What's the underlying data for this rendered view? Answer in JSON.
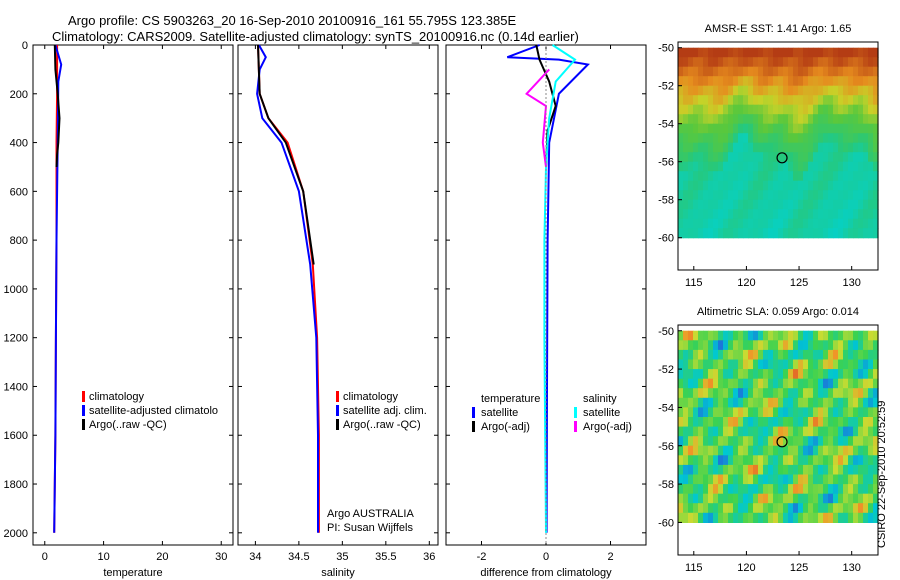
{
  "header": {
    "line1": "Argo profile: CS 5903263_20 16-Sep-2010 20100916_161 55.795S 123.385E",
    "line2": "Climatology: CARS2009. Satellite-adjusted climatology: synTS_20100916.nc (0.14d earlier)"
  },
  "side_label": "CSIRO 22-Sep-2010 20:52:59",
  "colors": {
    "climatology": "#ff0000",
    "satellite": "#0000ff",
    "argo": "#000000",
    "cyan": "#00ffff",
    "magenta": "#ff00ff"
  },
  "chart_data": [
    {
      "id": "temperature",
      "type": "line",
      "xlabel": "temperature",
      "ylabel": "",
      "xlim": [
        -2,
        32
      ],
      "ylim": [
        2050,
        0
      ],
      "xticks": [
        0,
        10,
        20,
        30
      ],
      "yticks": [
        0,
        200,
        400,
        600,
        800,
        1000,
        1200,
        1400,
        1600,
        1800,
        2000
      ],
      "legend": {
        "position": "lower-center",
        "entries": [
          "climatology",
          "satellite-adjusted climatolo",
          "Argo(..raw -QC)"
        ]
      },
      "series": [
        {
          "name": "climatology",
          "color": "#ff0000",
          "x": [
            2.1,
            2.1,
            2.0,
            2.0,
            1.9,
            1.8,
            1.7,
            1.6
          ],
          "y": [
            0,
            200,
            400,
            800,
            1200,
            1600,
            1800,
            2000
          ]
        },
        {
          "name": "satellite-adjusted climatology",
          "color": "#0000ff",
          "x": [
            1.8,
            2.8,
            2.3,
            2.2,
            2.0,
            1.9,
            1.8,
            1.7,
            1.6
          ],
          "y": [
            0,
            80,
            150,
            400,
            800,
            1200,
            1600,
            1800,
            2000
          ]
        },
        {
          "name": "Argo(..raw -QC)",
          "color": "#000000",
          "x": [
            1.7,
            1.8,
            2.2,
            2.5,
            2.3,
            2.1,
            2.0
          ],
          "y": [
            0,
            100,
            200,
            300,
            400,
            450,
            500
          ]
        }
      ]
    },
    {
      "id": "salinity",
      "type": "line",
      "xlabel": "salinity",
      "xlim": [
        33.8,
        36.1
      ],
      "ylim": [
        2050,
        0
      ],
      "xticks": [
        34,
        34.5,
        35,
        35.5,
        36
      ],
      "yticks": [
        0,
        200,
        400,
        600,
        800,
        1000,
        1200,
        1400,
        1600,
        1800,
        2000
      ],
      "legend": {
        "position": "lower-center",
        "entries": [
          "climatology",
          "satellite adj. clim.",
          "Argo(..raw -QC)"
        ]
      },
      "annotation": [
        "Argo AUSTRALIA",
        "PI: Susan Wijffels"
      ],
      "series": [
        {
          "name": "climatology",
          "color": "#ff0000",
          "x": [
            34.03,
            34.05,
            34.15,
            34.37,
            34.55,
            34.66,
            34.71,
            34.73,
            34.73
          ],
          "y": [
            0,
            200,
            300,
            400,
            600,
            900,
            1200,
            1600,
            2000
          ]
        },
        {
          "name": "satellite adj. clim.",
          "color": "#0000ff",
          "x": [
            34.04,
            34.12,
            34.05,
            34.02,
            34.08,
            34.3,
            34.5,
            34.63,
            34.7,
            34.72,
            34.72
          ],
          "y": [
            0,
            50,
            100,
            200,
            300,
            400,
            600,
            900,
            1200,
            1600,
            2000
          ]
        },
        {
          "name": "Argo(..raw -QC)",
          "color": "#000000",
          "x": [
            34.03,
            34.05,
            34.15,
            34.35,
            34.55,
            34.67
          ],
          "y": [
            0,
            200,
            300,
            400,
            600,
            900
          ]
        }
      ]
    },
    {
      "id": "difference",
      "type": "line",
      "xlabel": "difference from climatology",
      "xlim": [
        -3.1,
        3.1
      ],
      "ylim": [
        2050,
        0
      ],
      "xticks": [
        -2,
        0,
        2
      ],
      "yticks": [
        0,
        200,
        400,
        600,
        800,
        1000,
        1200,
        1400,
        1600,
        1800,
        2000
      ],
      "legend": {
        "position": "lower-center",
        "entries": [
          "temperature",
          "satellite",
          "Argo(-adj)",
          "salinity",
          "satellite",
          "Argo(-adj)"
        ]
      },
      "series": [
        {
          "name": "temperature satellite",
          "color": "#0000ff",
          "x": [
            -0.2,
            -1.2,
            0.4,
            1.3,
            0.4,
            0.1,
            0.05,
            0.03,
            0.02
          ],
          "y": [
            0,
            50,
            60,
            80,
            200,
            400,
            800,
            1400,
            2000
          ]
        },
        {
          "name": "temperature Argo(-adj)",
          "color": "#000000",
          "x": [
            -0.3,
            -0.2,
            0.1,
            0.3,
            0.05,
            0.0
          ],
          "y": [
            0,
            60,
            150,
            250,
            350,
            500
          ]
        },
        {
          "name": "salinity satellite",
          "color": "#00ffff",
          "x": [
            0.2,
            0.9,
            0.3,
            0.1,
            0.0,
            -0.05,
            -0.05,
            0.0
          ],
          "y": [
            0,
            60,
            150,
            300,
            500,
            800,
            1200,
            2000
          ]
        },
        {
          "name": "salinity Argo(-adj)",
          "color": "#ff00ff",
          "x": [
            0.1,
            -0.6,
            0.0,
            -0.1,
            0.0
          ],
          "y": [
            100,
            200,
            250,
            400,
            500
          ]
        }
      ]
    },
    {
      "id": "amsr-sst",
      "type": "heatmap",
      "title": "AMSR-E SST: 1.41 Argo: 1.65",
      "xlim": [
        113.5,
        132.5
      ],
      "ylim": [
        -61.7,
        -49.7
      ],
      "xticks": [
        115,
        120,
        125,
        130
      ],
      "yticks": [
        -50,
        -52,
        -54,
        -56,
        -58,
        -60
      ],
      "data_extent": {
        "lon": [
          113.5,
          132.5
        ],
        "lat": [
          -60,
          -50
        ]
      },
      "marker": {
        "lon": 123.385,
        "lat": -55.795
      }
    },
    {
      "id": "altimetric-sla",
      "type": "heatmap",
      "title": "Altimetric SLA: 0.059 Argo: 0.014",
      "xlim": [
        113.5,
        132.5
      ],
      "ylim": [
        -61.7,
        -49.7
      ],
      "xticks": [
        115,
        120,
        125,
        130
      ],
      "yticks": [
        -50,
        -52,
        -54,
        -56,
        -58,
        -60
      ],
      "data_extent": {
        "lon": [
          113.5,
          132.5
        ],
        "lat": [
          -60,
          -50
        ]
      },
      "marker": {
        "lon": 123.385,
        "lat": -55.795
      }
    }
  ]
}
